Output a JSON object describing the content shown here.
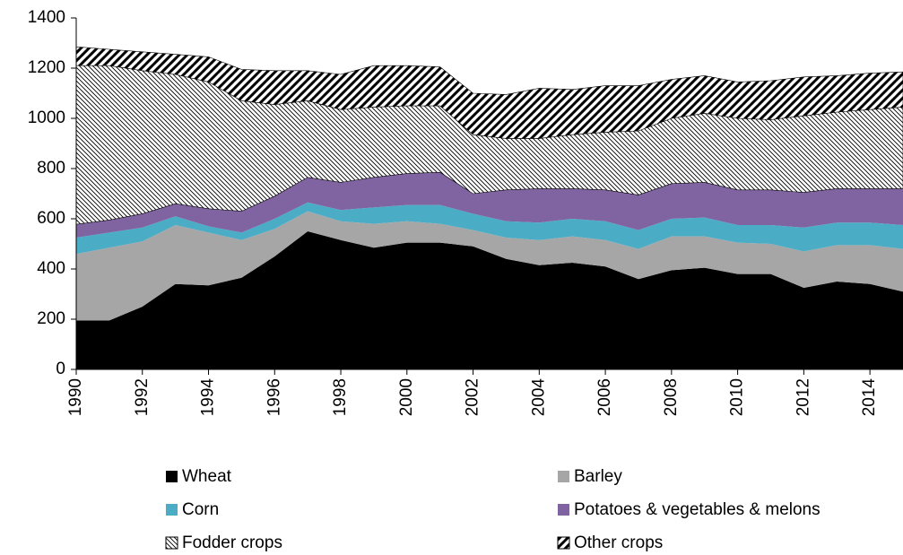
{
  "chart_data": {
    "type": "stacked-area",
    "x": [
      1990,
      1991,
      1992,
      1993,
      1994,
      1995,
      1996,
      1997,
      1998,
      1999,
      2000,
      2001,
      2002,
      2003,
      2004,
      2005,
      2006,
      2007,
      2008,
      2009,
      2010,
      2011,
      2012,
      2013,
      2014,
      2015
    ],
    "xlim": [
      1990,
      2015
    ],
    "xticks": [
      1990,
      1992,
      1994,
      1996,
      1998,
      2000,
      2002,
      2004,
      2006,
      2008,
      2010,
      2012,
      2014
    ],
    "ylim": [
      0,
      1400
    ],
    "yticks": [
      0,
      200,
      400,
      600,
      800,
      1000,
      1200,
      1400
    ],
    "series": [
      {
        "name": "Wheat",
        "color": "#000000",
        "values": [
          195,
          195,
          250,
          340,
          335,
          365,
          450,
          550,
          515,
          485,
          505,
          505,
          490,
          440,
          415,
          425,
          410,
          360,
          395,
          405,
          380,
          380,
          325,
          350,
          340,
          310
        ]
      },
      {
        "name": "Barley",
        "color": "#a6a6a6",
        "values": [
          265,
          290,
          260,
          235,
          210,
          150,
          110,
          80,
          75,
          95,
          85,
          75,
          65,
          85,
          100,
          105,
          105,
          120,
          135,
          125,
          125,
          120,
          145,
          145,
          155,
          170
        ]
      },
      {
        "name": "Corn",
        "color": "#4bacc6",
        "values": [
          65,
          60,
          55,
          35,
          25,
          30,
          40,
          35,
          45,
          65,
          65,
          75,
          65,
          65,
          70,
          70,
          75,
          75,
          70,
          75,
          70,
          75,
          95,
          90,
          90,
          95
        ]
      },
      {
        "name": "Potatoes & vegetables & melons",
        "color": "#8064a2",
        "values": [
          53,
          50,
          55,
          50,
          70,
          85,
          90,
          100,
          110,
          120,
          125,
          130,
          80,
          125,
          135,
          120,
          125,
          140,
          140,
          140,
          140,
          140,
          140,
          135,
          135,
          145
        ]
      },
      {
        "name": "Fodder crops",
        "color": "#000000",
        "hatch": "back-diagonal-fine",
        "values": [
          632,
          615,
          570,
          515,
          505,
          440,
          365,
          305,
          290,
          280,
          270,
          265,
          235,
          205,
          200,
          215,
          230,
          255,
          260,
          275,
          285,
          280,
          305,
          305,
          315,
          325
        ]
      },
      {
        "name": "Other crops",
        "color": "#000000",
        "hatch": "forward-diagonal-wide",
        "values": [
          75,
          65,
          75,
          80,
          100,
          125,
          135,
          120,
          140,
          165,
          160,
          155,
          165,
          175,
          200,
          180,
          185,
          180,
          155,
          150,
          145,
          155,
          155,
          145,
          145,
          140
        ]
      }
    ],
    "legend": "bottom"
  }
}
